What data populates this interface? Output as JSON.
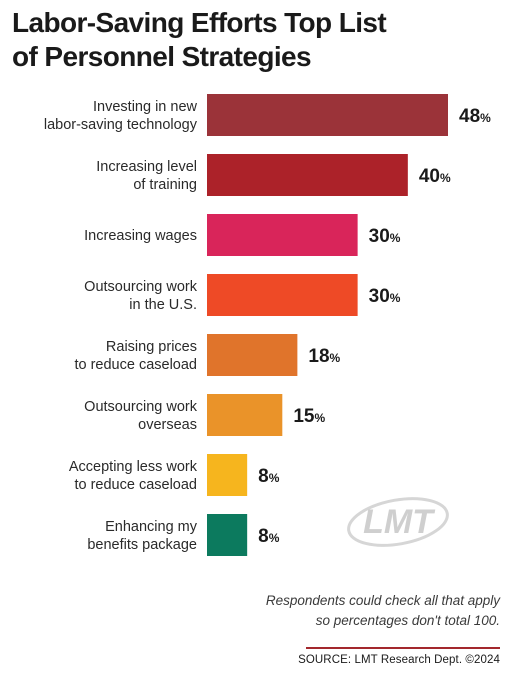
{
  "title_lines": [
    "Labor-Saving Efforts Top List",
    "of Personnel Strategies"
  ],
  "chart_data": {
    "type": "bar",
    "orientation": "horizontal",
    "title": "Labor-Saving Efforts Top List of Personnel Strategies",
    "categories": [
      [
        "Investing in new",
        "labor-saving technology"
      ],
      [
        "Increasing level",
        "of training"
      ],
      [
        "Increasing wages"
      ],
      [
        "Outsourcing work",
        "in the U.S."
      ],
      [
        "Raising prices",
        "to reduce caseload"
      ],
      [
        "Outsourcing work",
        "overseas"
      ],
      [
        "Accepting less work",
        "to reduce caseload"
      ],
      [
        "Enhancing my",
        "benefits package"
      ]
    ],
    "values": [
      48,
      40,
      30,
      30,
      18,
      15,
      8,
      8
    ],
    "value_suffix": "%",
    "colors": [
      "#9b3339",
      "#ac2229",
      "#d9255a",
      "#ee4a26",
      "#e0742b",
      "#ea9329",
      "#f6b51e",
      "#0c7a5e"
    ],
    "xlim": [
      0,
      48
    ],
    "grid": false,
    "legend": "none"
  },
  "logo": "LMT",
  "note_lines": [
    "Respondents could check all that apply",
    "so percentages don't total 100."
  ],
  "source": "SOURCE: LMT Research Dept. ©2024"
}
